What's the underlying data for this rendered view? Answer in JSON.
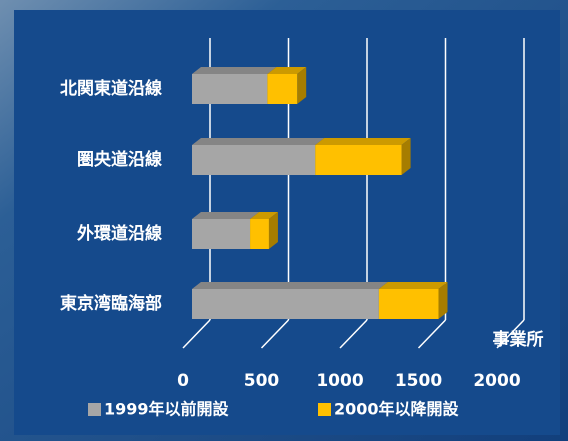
{
  "chart_data": {
    "type": "bar",
    "orientation": "horizontal",
    "stacked": true,
    "categories": [
      "北関東道沿線",
      "圏央道沿線",
      "外環道沿線",
      "東京湾臨海部"
    ],
    "series": [
      {
        "name": "1999年以前開設",
        "color": "#a6a6a6",
        "values": [
          480,
          785,
          370,
          1190
        ]
      },
      {
        "name": "2000年以降開設",
        "color": "#ffc000",
        "values": [
          190,
          550,
          120,
          380
        ]
      }
    ],
    "xlim": [
      0,
      2000
    ],
    "xticks": [
      0,
      500,
      1000,
      1500,
      2000
    ],
    "x_unit_label": "事業所",
    "grid": true,
    "legend": "bottom"
  }
}
